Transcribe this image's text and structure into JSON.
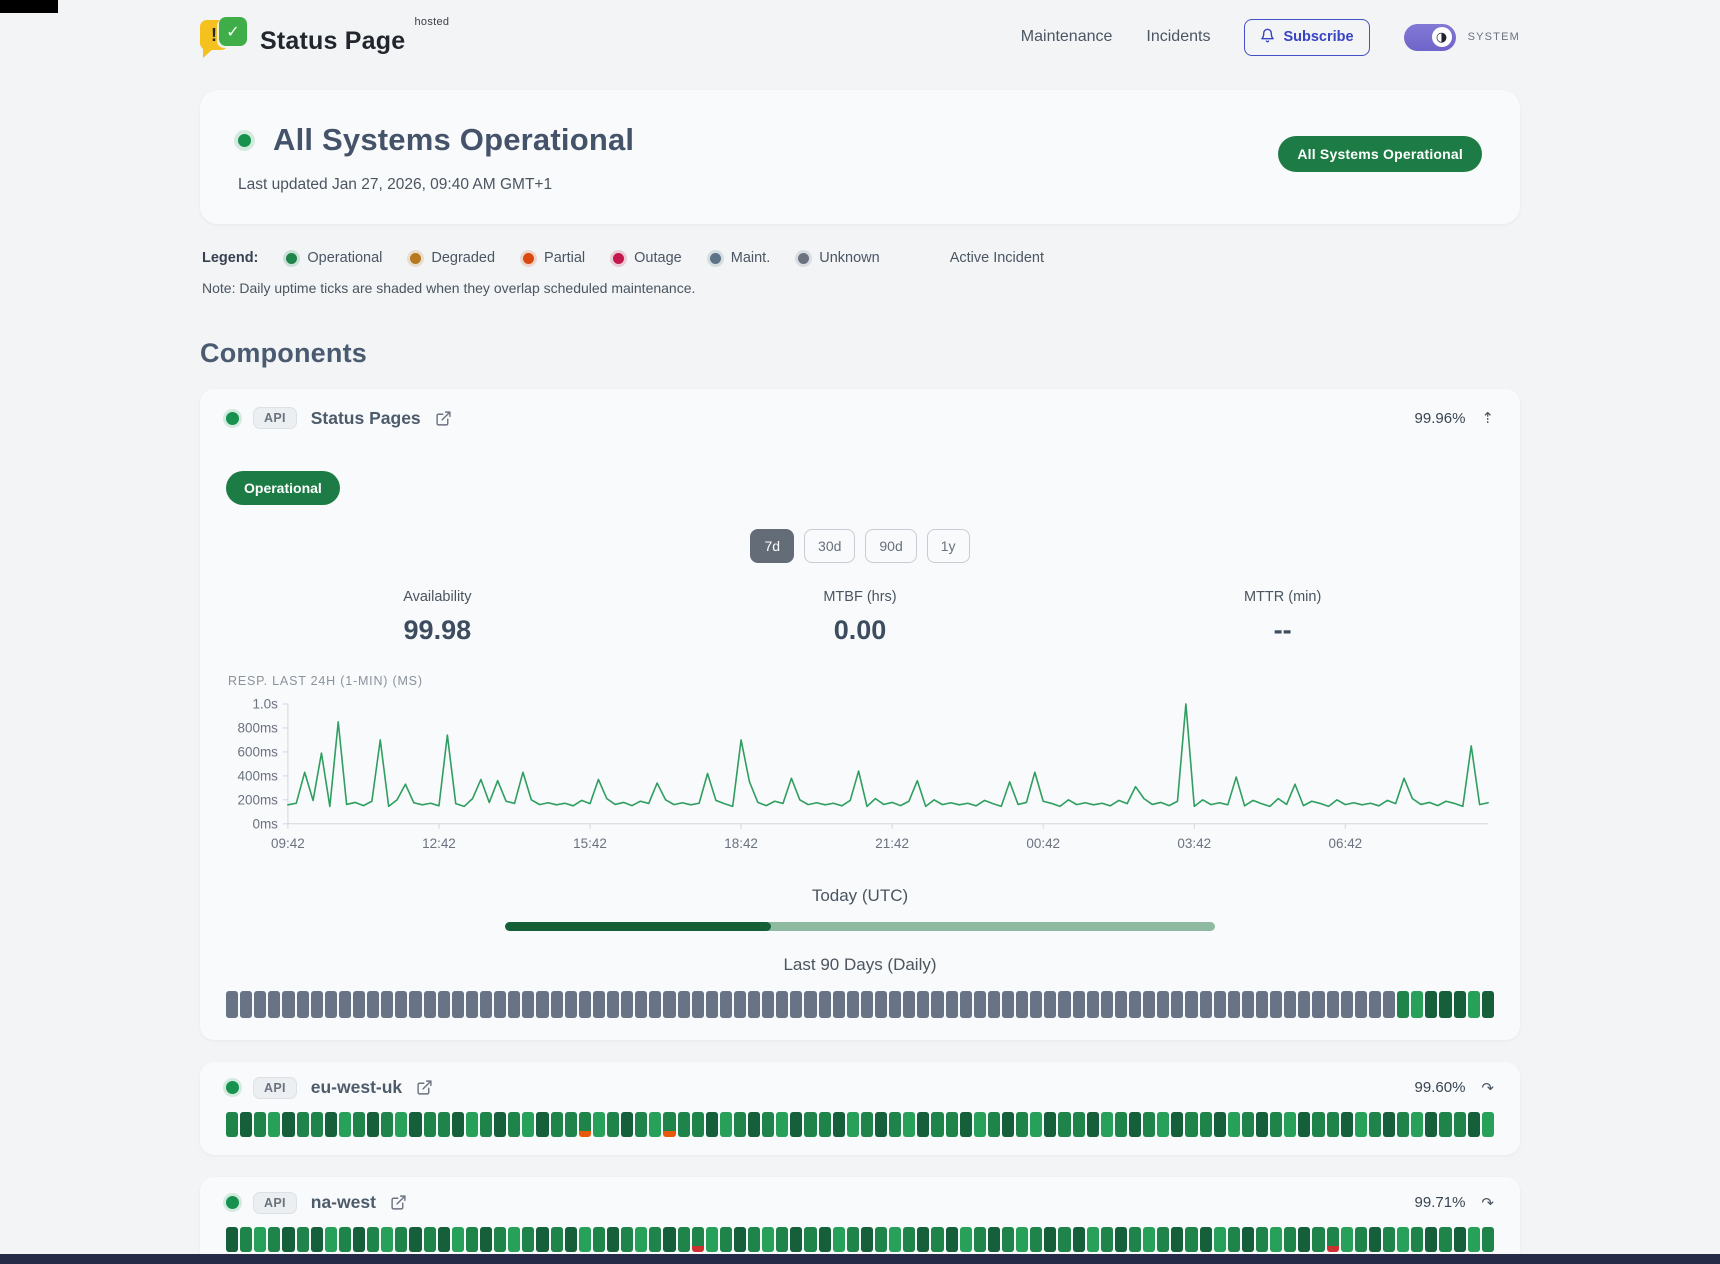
{
  "header": {
    "brand": {
      "name": "Status Page",
      "superscript": "hosted",
      "exclaim": "!",
      "check": "✓"
    },
    "nav": [
      {
        "label": "Maintenance"
      },
      {
        "label": "Incidents"
      }
    ],
    "subscribe_label": "Subscribe",
    "theme_toggle_glyph": "◑",
    "theme_label": "SYSTEM"
  },
  "hero": {
    "title": "All Systems Operational",
    "last_updated": "Last updated Jan 27, 2026, 09:40 AM GMT+1",
    "badge": "All Systems Operational"
  },
  "legend": {
    "label": "Legend:",
    "items": [
      {
        "label": "Operational",
        "color": "#1e8449"
      },
      {
        "label": "Degraded",
        "color": "#b7791f"
      },
      {
        "label": "Partial",
        "color": "#d9480f"
      },
      {
        "label": "Outage",
        "color": "#c2184b"
      },
      {
        "label": "Maint.",
        "color": "#5b7287"
      },
      {
        "label": "Unknown",
        "color": "#6b7280"
      }
    ],
    "active_incident_label": "Active Incident",
    "note": "Note: Daily uptime ticks are shaded when they overlap scheduled maintenance."
  },
  "components_title": "Components",
  "cards": [
    {
      "tag": "API",
      "name": "Status Pages",
      "uptime": "99.96%",
      "expand_icon": "⇡",
      "status_badge": "Operational",
      "ranges": [
        {
          "label": "7d",
          "active": true
        },
        {
          "label": "30d",
          "active": false
        },
        {
          "label": "90d",
          "active": false
        },
        {
          "label": "1y",
          "active": false
        }
      ],
      "stats": [
        {
          "label": "Availability",
          "value": "99.98"
        },
        {
          "label": "MTBF (hrs)",
          "value": "0.00"
        },
        {
          "label": "MTTR (min)",
          "value": "--"
        }
      ],
      "today_label": "Today (UTC)",
      "today_progress_pct": 37.5,
      "ninety_label": "Last 90 Days (Daily)",
      "ticks": "uuuuuuuuuuuuuuuuuuuuuuuuuuuuuuuuuuuuuuuuuuuuuuuuuuuuuuuuuuuuuuuuuuuuuuuuuuuuuuuuuuugGdddGd"
    },
    {
      "tag": "API",
      "name": "eu-west-uk",
      "uptime": "99.60%",
      "expand_icon": "↷",
      "ticks": "gdgGdggdGgdgGdggdGgdgGdggpGgdgGpggdGgdgGdggdGgdgGdggdGgdgGdggdGgdgGdggdGgdgGdggdGgdgGdggdG"
    },
    {
      "tag": "API",
      "name": "na-west",
      "uptime": "99.71%",
      "expand_icon": "↷",
      "ticks": "dgGgdgdGgdgGgdgdGgdgGgdgdGgdgGgdgrGgdgGgdgdGgdgGgdgdGgdgGgdgdGgdgGgdgdGgdgGgdgrGgdgGgdgdGg"
    }
  ],
  "tick_styles": {
    "u": {
      "color": "#687485"
    },
    "g": {
      "color": "#1e8449"
    },
    "G": {
      "color": "#27a05a"
    },
    "d": {
      "color": "#15603a"
    },
    "p": {
      "color": "#1e8449",
      "bottom": "#e8590c"
    },
    "r": {
      "color": "#1e8449",
      "bottom": "#cf3030"
    }
  },
  "progress_colors": {
    "fill": "#155f36",
    "track": "#8fbaa2"
  },
  "chart_data": {
    "type": "line",
    "title": "RESP. LAST 24H (1-MIN) (MS)",
    "series_color": "#2f9e60",
    "axis_color": "#d3d7dc",
    "label_color": "#6b7280",
    "ylim": [
      0,
      1000
    ],
    "y_ticks": [
      {
        "v": 1000,
        "label": "1.0s"
      },
      {
        "v": 800,
        "label": "800ms"
      },
      {
        "v": 600,
        "label": "600ms"
      },
      {
        "v": 400,
        "label": "400ms"
      },
      {
        "v": 200,
        "label": "200ms"
      },
      {
        "v": 0,
        "label": "0ms"
      }
    ],
    "x_ticks": [
      "09:42",
      "12:42",
      "15:42",
      "18:42",
      "21:42",
      "00:42",
      "03:42",
      "06:42"
    ],
    "x_tick_indices": [
      0,
      18,
      36,
      54,
      72,
      90,
      108,
      126
    ],
    "values": [
      158,
      172,
      430,
      195,
      590,
      145,
      850,
      162,
      178,
      152,
      188,
      700,
      146,
      200,
      330,
      176,
      158,
      172,
      150,
      740,
      168,
      145,
      210,
      370,
      178,
      360,
      188,
      170,
      430,
      200,
      160,
      176,
      158,
      172,
      150,
      195,
      168,
      370,
      210,
      162,
      178,
      152,
      188,
      170,
      340,
      200,
      160,
      176,
      158,
      172,
      420,
      195,
      168,
      145,
      700,
      350,
      178,
      152,
      188,
      170,
      380,
      200,
      160,
      176,
      158,
      172,
      150,
      195,
      440,
      145,
      210,
      162,
      178,
      152,
      188,
      360,
      146,
      200,
      160,
      176,
      158,
      172,
      150,
      195,
      168,
      145,
      350,
      162,
      178,
      430,
      188,
      170,
      146,
      200,
      160,
      176,
      158,
      172,
      150,
      195,
      168,
      310,
      210,
      162,
      178,
      152,
      188,
      1000,
      146,
      200,
      160,
      176,
      158,
      390,
      150,
      195,
      168,
      145,
      210,
      162,
      330,
      152,
      188,
      170,
      146,
      200,
      160,
      176,
      158,
      172,
      150,
      195,
      168,
      380,
      210,
      162,
      178,
      152,
      188,
      170,
      146,
      650,
      160,
      176
    ]
  }
}
